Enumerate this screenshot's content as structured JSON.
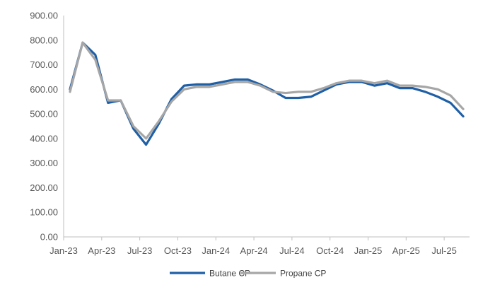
{
  "chart_data": {
    "type": "line",
    "title": "",
    "xlabel": "",
    "ylabel": "",
    "ylim": [
      0,
      900
    ],
    "y_ticks": [
      "0.00",
      "100.00",
      "200.00",
      "300.00",
      "400.00",
      "500.00",
      "600.00",
      "700.00",
      "800.00",
      "900.00"
    ],
    "x": [
      "Jan-23",
      "Feb-23",
      "Mar-23",
      "Apr-23",
      "May-23",
      "Jun-23",
      "Jul-23",
      "Aug-23",
      "Sep-23",
      "Oct-23",
      "Nov-23",
      "Dec-23",
      "Jan-24",
      "Feb-24",
      "Mar-24",
      "Apr-24",
      "May-24",
      "Jun-24",
      "Jul-24",
      "Aug-24",
      "Sep-24",
      "Oct-24",
      "Nov-24",
      "Dec-24",
      "Jan-25",
      "Feb-25",
      "Mar-25",
      "Apr-25",
      "May-25",
      "Jun-25",
      "Jul-25",
      "Aug-25"
    ],
    "x_tick_labels": [
      "Jan-23",
      "Apr-23",
      "Jul-23",
      "Oct-23",
      "Jan-24",
      "Apr-24",
      "Jul-24",
      "Oct-24",
      "Jan-25",
      "Apr-25",
      "Jul-25"
    ],
    "grid": false,
    "legend_position": "bottom",
    "series": [
      {
        "name": "Butane  CP",
        "color": "#1f5fa6",
        "values": [
          600,
          790,
          740,
          545,
          555,
          440,
          375,
          460,
          560,
          615,
          620,
          620,
          630,
          640,
          640,
          620,
          595,
          565,
          565,
          570,
          595,
          620,
          630,
          630,
          615,
          625,
          605,
          605,
          590,
          570,
          545,
          490
        ]
      },
      {
        "name": "Propane  CP",
        "color": "#a6a6a6",
        "values": [
          590,
          790,
          720,
          555,
          555,
          450,
          400,
          470,
          550,
          600,
          610,
          610,
          620,
          630,
          630,
          615,
          590,
          585,
          590,
          590,
          605,
          625,
          635,
          635,
          625,
          635,
          615,
          615,
          610,
          600,
          575,
          520
        ]
      }
    ]
  }
}
